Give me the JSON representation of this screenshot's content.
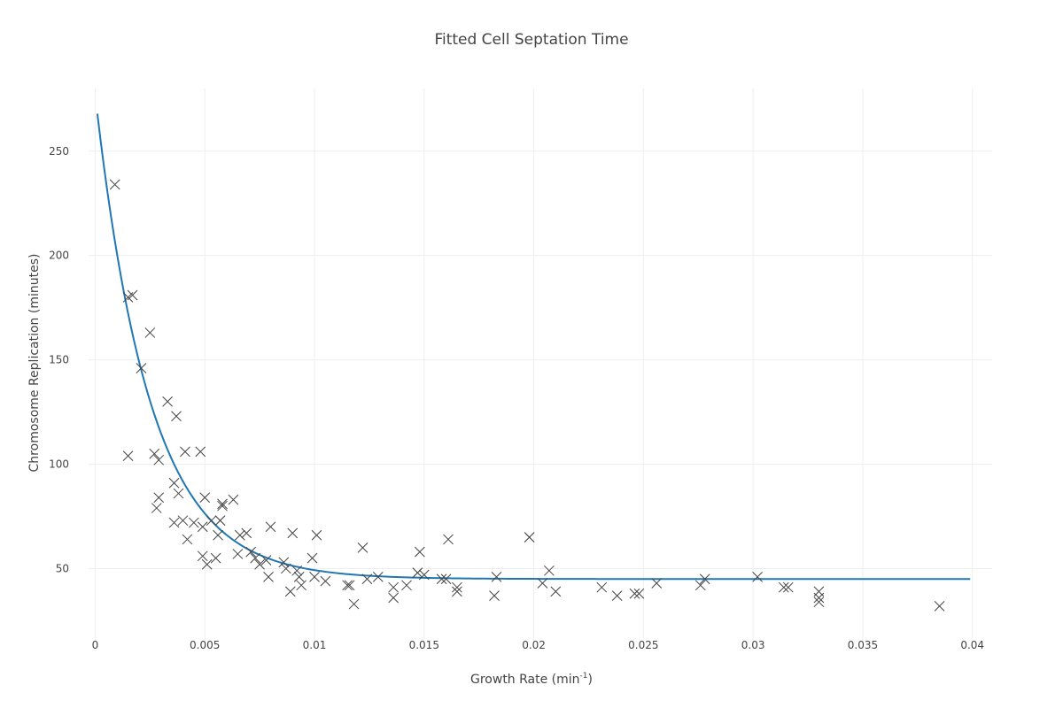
{
  "chart_data": {
    "type": "scatter",
    "title": "Fitted Cell Septation Time",
    "xlabel": "Growth Rate (min",
    "xlabel_sup": "-1",
    "xlabel_end": ")",
    "ylabel": "Chromosome Replication (minutes)",
    "xlim": [
      -0.0003,
      0.0409
    ],
    "ylim": [
      15,
      280
    ],
    "xticks": [
      0,
      0.005,
      0.01,
      0.015,
      0.02,
      0.025,
      0.03,
      0.035,
      0.04
    ],
    "xtick_labels": [
      "0",
      "0.005",
      "0.01",
      "0.015",
      "0.02",
      "0.025",
      "0.03",
      "0.035",
      "0.04"
    ],
    "yticks": [
      50,
      100,
      150,
      200,
      250
    ],
    "ytick_labels": [
      "50",
      "100",
      "150",
      "200",
      "250"
    ],
    "grid": true,
    "legend": "none",
    "colors": {
      "fit_line": "#1f77b4",
      "markers": "#444444",
      "grid": "#eeeeee"
    },
    "series": [
      {
        "mode": "markers",
        "marker": "x",
        "x": [
          0.0009,
          0.0015,
          0.0017,
          0.0025,
          0.0021,
          0.0015,
          0.0027,
          0.0029,
          0.0033,
          0.0037,
          0.0028,
          0.0029,
          0.0036,
          0.0038,
          0.0041,
          0.0042,
          0.0036,
          0.004,
          0.0045,
          0.0048,
          0.0049,
          0.005,
          0.0051,
          0.0049,
          0.0053,
          0.0055,
          0.0056,
          0.0057,
          0.0058,
          0.0058,
          0.0057,
          0.0063,
          0.0065,
          0.0066,
          0.0069,
          0.0071,
          0.0073,
          0.0075,
          0.0078,
          0.0079,
          0.008,
          0.0086,
          0.0087,
          0.0089,
          0.009,
          0.0092,
          0.0093,
          0.0094,
          0.0099,
          0.01,
          0.0101,
          0.0105,
          0.0115,
          0.0116,
          0.0118,
          0.0122,
          0.0124,
          0.0129,
          0.0136,
          0.0136,
          0.0142,
          0.0147,
          0.0147,
          0.0148,
          0.015,
          0.0158,
          0.016,
          0.0161,
          0.0165,
          0.0165,
          0.0182,
          0.0183,
          0.0198,
          0.0198,
          0.0204,
          0.0207,
          0.021,
          0.0231,
          0.0238,
          0.0246,
          0.0248,
          0.0256,
          0.0276,
          0.0278,
          0.0302,
          0.0314,
          0.0316,
          0.033,
          0.033,
          0.033,
          0.0385
        ],
        "y": [
          234,
          180,
          181,
          163,
          146,
          104,
          105,
          102,
          130,
          123,
          79,
          84,
          91,
          86,
          106,
          64,
          72,
          73,
          72,
          106,
          56,
          84,
          52,
          70,
          73,
          55,
          66,
          73,
          80,
          81,
          73,
          83,
          57,
          66,
          67,
          58,
          55,
          52,
          54,
          46,
          70,
          53,
          50,
          39,
          67,
          49,
          46,
          42,
          55,
          46,
          66,
          44,
          42,
          42,
          33,
          60,
          45,
          46,
          36,
          41,
          42,
          48,
          48,
          58,
          47,
          45,
          45,
          64,
          41,
          39,
          37,
          46,
          65,
          65,
          43,
          49,
          39,
          41,
          37,
          38,
          38,
          43,
          42,
          45,
          46,
          41,
          41,
          34,
          36,
          39,
          32
        ]
      },
      {
        "mode": "lines",
        "fit": {
          "formula": "y = 45 + 232*exp(-x/0.0025)",
          "x_range": [
            0.0001,
            0.0399
          ]
        }
      }
    ]
  }
}
